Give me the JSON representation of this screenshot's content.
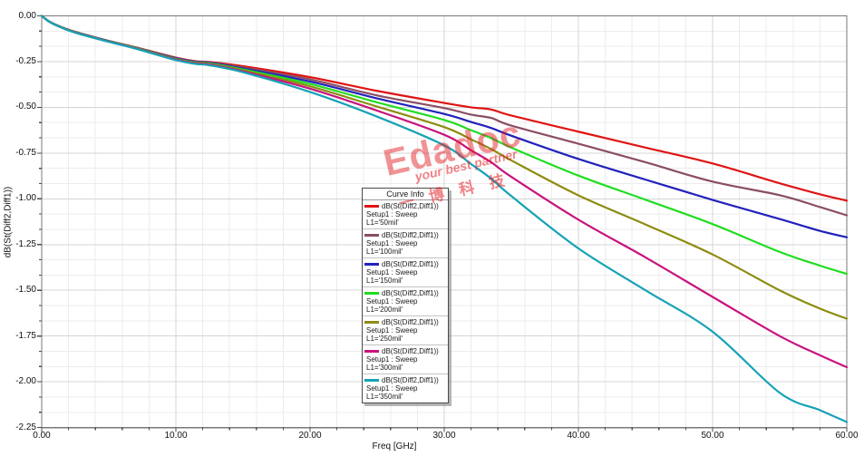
{
  "watermark": {
    "brand": "Edadoc",
    "tagline": "your best partner",
    "chinese": "一博科技",
    "color": "#e31e24"
  },
  "chart_data": {
    "type": "line",
    "title": "",
    "xlabel": "Freq [GHz]",
    "ylabel": "dB(St(Diff2,Diff1))",
    "xlim": [
      0,
      60
    ],
    "ylim": [
      -2.25,
      0
    ],
    "grid": true,
    "x_major_step": 10,
    "x_minor_step": 2,
    "y_major_step": 0.25,
    "y_minor_divisions": 3,
    "x_ticks": [
      "0.00",
      "10.00",
      "20.00",
      "30.00",
      "40.00",
      "50.00",
      "60.00"
    ],
    "y_ticks": [
      "0.00",
      "-0.25",
      "-0.50",
      "-0.75",
      "-1.00",
      "-1.25",
      "-1.50",
      "-1.75",
      "-2.00",
      "-2.25"
    ],
    "legend": {
      "title": "Curve Info",
      "position": "center"
    },
    "series": [
      {
        "name": "dB(St(Diff2,Diff1))",
        "setup": "Setup1 : Sweep",
        "variation": "L1='50mil'",
        "color": "#e01414",
        "x": [
          0,
          0.5,
          1,
          2,
          3,
          5,
          7,
          10,
          11.5,
          12.5,
          15,
          20,
          25,
          30,
          32,
          33.5,
          35,
          40,
          45,
          50,
          55,
          58,
          60
        ],
        "y": [
          0,
          -0.028,
          -0.047,
          -0.076,
          -0.098,
          -0.137,
          -0.172,
          -0.228,
          -0.248,
          -0.252,
          -0.275,
          -0.335,
          -0.41,
          -0.476,
          -0.5,
          -0.512,
          -0.545,
          -0.633,
          -0.72,
          -0.807,
          -0.915,
          -0.975,
          -1.01
        ]
      },
      {
        "name": "dB(St(Diff2,Diff1))",
        "setup": "Setup1 : Sweep",
        "variation": "L1='100mil'",
        "color": "#8a4e63",
        "x": [
          0,
          0.5,
          1,
          2,
          3,
          5,
          7,
          10,
          11.5,
          12.5,
          15,
          20,
          25,
          30,
          32,
          33.5,
          35,
          40,
          45,
          50,
          55,
          58,
          60
        ],
        "y": [
          0,
          -0.028,
          -0.047,
          -0.076,
          -0.098,
          -0.137,
          -0.173,
          -0.23,
          -0.25,
          -0.254,
          -0.282,
          -0.347,
          -0.435,
          -0.504,
          -0.54,
          -0.558,
          -0.6,
          -0.699,
          -0.8,
          -0.906,
          -0.98,
          -1.045,
          -1.09
        ]
      },
      {
        "name": "dB(St(Diff2,Diff1))",
        "setup": "Setup1 : Sweep",
        "variation": "L1='150mil'",
        "color": "#2222bb",
        "x": [
          0,
          0.5,
          1,
          2,
          3,
          5,
          7,
          10,
          11.5,
          12.5,
          15,
          20,
          25,
          30,
          32,
          33.5,
          35,
          40,
          45,
          50,
          55,
          58,
          60
        ],
        "y": [
          0,
          -0.028,
          -0.047,
          -0.077,
          -0.099,
          -0.138,
          -0.174,
          -0.232,
          -0.252,
          -0.257,
          -0.288,
          -0.359,
          -0.451,
          -0.536,
          -0.58,
          -0.613,
          -0.655,
          -0.782,
          -0.895,
          -1.006,
          -1.11,
          -1.175,
          -1.21
        ]
      },
      {
        "name": "dB(St(Diff2,Diff1))",
        "setup": "Setup1 : Sweep",
        "variation": "L1='200mil'",
        "color": "#21dd21",
        "x": [
          0,
          0.5,
          1,
          2,
          3,
          5,
          7,
          10,
          11.5,
          12.5,
          15,
          20,
          25,
          30,
          32,
          33.5,
          35,
          40,
          45,
          50,
          55,
          58,
          60
        ],
        "y": [
          0,
          -0.028,
          -0.048,
          -0.077,
          -0.1,
          -0.139,
          -0.175,
          -0.235,
          -0.255,
          -0.26,
          -0.293,
          -0.372,
          -0.473,
          -0.569,
          -0.625,
          -0.668,
          -0.72,
          -0.873,
          -1.005,
          -1.138,
          -1.29,
          -1.365,
          -1.41
        ]
      },
      {
        "name": "dB(St(Diff2,Diff1))",
        "setup": "Setup1 : Sweep",
        "variation": "L1='250mil'",
        "color": "#8c8c12",
        "x": [
          0,
          0.5,
          1,
          2,
          3,
          5,
          7,
          10,
          11.5,
          12.5,
          15,
          20,
          25,
          30,
          32,
          33.5,
          35,
          40,
          45,
          50,
          55,
          58,
          60
        ],
        "y": [
          0,
          -0.029,
          -0.048,
          -0.078,
          -0.101,
          -0.14,
          -0.176,
          -0.237,
          -0.257,
          -0.263,
          -0.298,
          -0.385,
          -0.496,
          -0.608,
          -0.675,
          -0.728,
          -0.79,
          -0.981,
          -1.14,
          -1.304,
          -1.5,
          -1.6,
          -1.655
        ]
      },
      {
        "name": "dB(St(Diff2,Diff1))",
        "setup": "Setup1 : Sweep",
        "variation": "L1='300mil'",
        "color": "#c8147e",
        "x": [
          0,
          0.5,
          1,
          2,
          3,
          5,
          7,
          10,
          11.5,
          12.5,
          15,
          20,
          25,
          30,
          32,
          33.5,
          35,
          40,
          45,
          50,
          55,
          58,
          60
        ],
        "y": [
          0,
          -0.029,
          -0.049,
          -0.079,
          -0.102,
          -0.141,
          -0.178,
          -0.239,
          -0.26,
          -0.266,
          -0.303,
          -0.398,
          -0.518,
          -0.65,
          -0.735,
          -0.8,
          -0.88,
          -1.114,
          -1.32,
          -1.536,
          -1.75,
          -1.855,
          -1.92
        ]
      },
      {
        "name": "dB(St(Diff2,Diff1))",
        "setup": "Setup1 : Sweep",
        "variation": "L1='350mil'",
        "color": "#16a2b6",
        "x": [
          0,
          0.5,
          1,
          2,
          3,
          5,
          7,
          10,
          11.5,
          12.5,
          15,
          20,
          25,
          30,
          32,
          33.5,
          35,
          40,
          45,
          50,
          55,
          58,
          60
        ],
        "y": [
          0,
          -0.029,
          -0.049,
          -0.08,
          -0.103,
          -0.142,
          -0.179,
          -0.242,
          -0.263,
          -0.27,
          -0.308,
          -0.416,
          -0.551,
          -0.708,
          -0.81,
          -0.89,
          -0.985,
          -1.271,
          -1.5,
          -1.726,
          -2.06,
          -2.155,
          -2.22
        ]
      }
    ]
  }
}
